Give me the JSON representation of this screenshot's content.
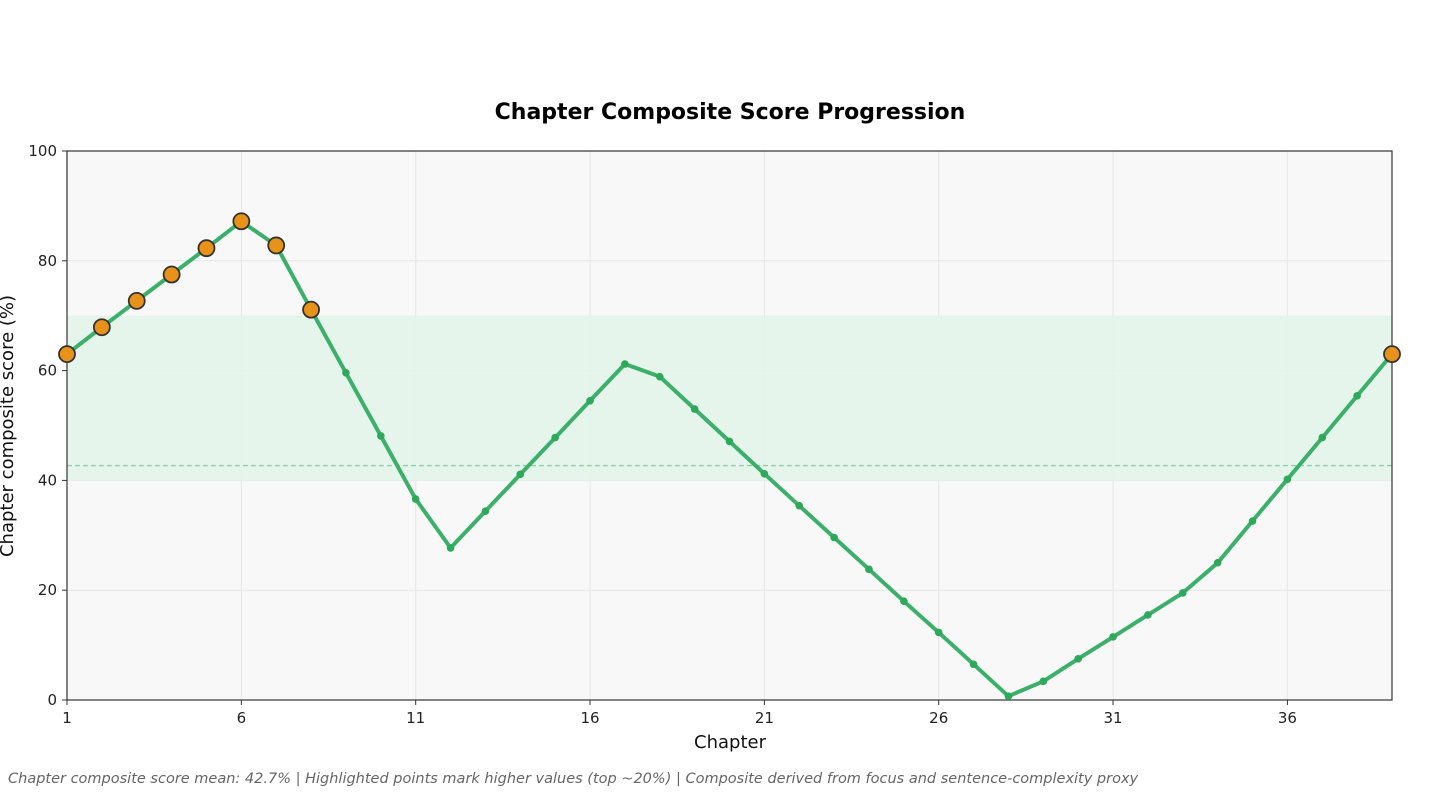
{
  "chart_data": {
    "type": "line",
    "title": "Chapter Composite Score Progression",
    "xlabel": "Chapter",
    "ylabel": "Chapter composite score (%)",
    "xlim": [
      1,
      39
    ],
    "ylim": [
      0,
      100
    ],
    "x_ticks": [
      1,
      6,
      11,
      16,
      21,
      26,
      31,
      36
    ],
    "y_ticks": [
      0,
      20,
      40,
      60,
      80,
      100
    ],
    "grid": true,
    "x": [
      1,
      2,
      3,
      4,
      5,
      6,
      7,
      8,
      9,
      10,
      11,
      12,
      13,
      14,
      15,
      16,
      17,
      18,
      19,
      20,
      21,
      22,
      23,
      24,
      25,
      26,
      27,
      28,
      29,
      30,
      31,
      32,
      33,
      34,
      35,
      36,
      37,
      38,
      39
    ],
    "values": [
      63.0,
      67.9,
      72.7,
      77.5,
      82.3,
      87.2,
      82.8,
      71.1,
      59.6,
      48.1,
      36.6,
      27.7,
      34.4,
      41.1,
      47.8,
      54.5,
      61.2,
      58.9,
      53.0,
      47.1,
      41.2,
      35.4,
      29.6,
      23.8,
      18.0,
      12.3,
      6.5,
      0.7,
      3.4,
      7.5,
      11.5,
      15.5,
      19.5,
      25.0,
      32.6,
      40.2,
      47.8,
      55.4,
      63.0
    ],
    "highlighted": [
      1,
      2,
      3,
      4,
      5,
      6,
      7,
      8,
      39
    ],
    "mean": 42.7,
    "band": [
      40,
      70
    ],
    "colors": {
      "line": "#3cb06a",
      "point": "#2ea85a",
      "highlight_fill": "#e8921a",
      "highlight_edge": "#333333",
      "band": "#e3f4ea",
      "mean_line": "#8fcfa6",
      "plot_bg": "#f8f8f8",
      "grid": "#e6e6e6"
    }
  },
  "footnote": "Chapter composite score mean: 42.7% | Highlighted points mark higher values (top ~20%) | Composite derived from focus and sentence-complexity proxy"
}
